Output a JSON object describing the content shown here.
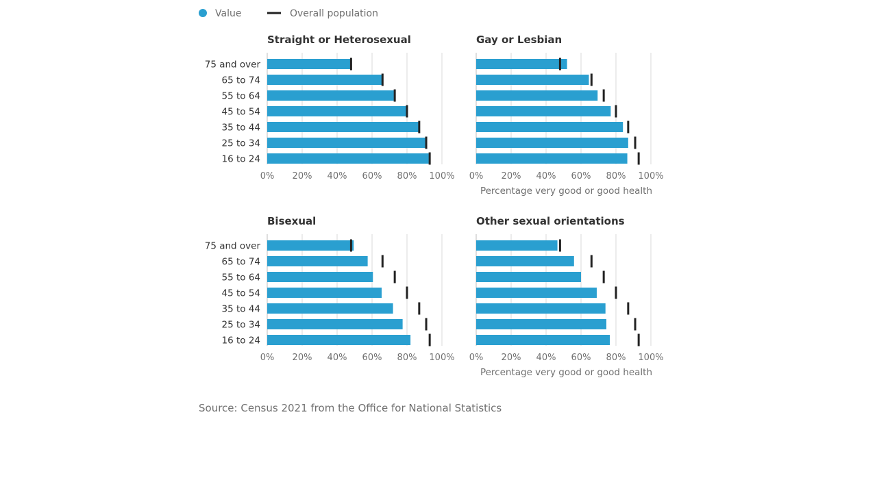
{
  "legend": {
    "value_label": "Value",
    "overall_label": "Overall population"
  },
  "colors": {
    "value": "#2a9fd0",
    "overall": "#222222"
  },
  "source": "Source: Census 2021 from the Office for National Statistics",
  "chart_data": {
    "type": "bar",
    "orientation": "horizontal",
    "categories": [
      "75 and over",
      "65 to 74",
      "55 to 64",
      "45 to 54",
      "35 to 44",
      "25 to 34",
      "16 to 24"
    ],
    "xlim": [
      0,
      100
    ],
    "ticks": [
      "0%",
      "20%",
      "40%",
      "60%",
      "80%",
      "100%"
    ],
    "overall_population": [
      48,
      66,
      73,
      80,
      87,
      91,
      93
    ],
    "xlabel": "Percentage very good or good health",
    "grid": true,
    "legend_position": "top-left",
    "panels": [
      {
        "title": "Straight or Heterosexual",
        "values": [
          47.5,
          65.5,
          72.5,
          80,
          86.5,
          90.5,
          92.5
        ],
        "show_xlabel": false
      },
      {
        "title": "Gay or Lesbian",
        "values": [
          52,
          64.5,
          69.5,
          77,
          84,
          87,
          86.5
        ],
        "show_xlabel": true
      },
      {
        "title": "Bisexual",
        "values": [
          49.5,
          57.5,
          60.5,
          65.5,
          72,
          77.5,
          82
        ],
        "show_xlabel": false
      },
      {
        "title": "Other sexual orientations",
        "values": [
          46.5,
          56,
          60,
          69,
          74,
          74.5,
          76.5
        ],
        "show_xlabel": true
      }
    ]
  }
}
